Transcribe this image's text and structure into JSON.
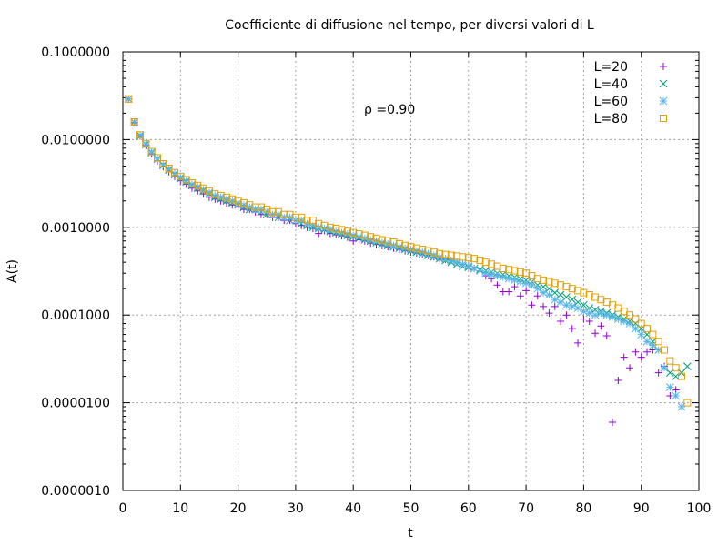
{
  "chart_data": {
    "type": "scatter",
    "title": "Coefficiente di diffusione nel tempo, per diversi valori di L",
    "xlabel": "t",
    "ylabel": "A(t)",
    "xlim": [
      0,
      100
    ],
    "ylim": [
      1e-06,
      0.1
    ],
    "yscale": "log",
    "grid": true,
    "legend_position": "top-right",
    "annotation": "ρ =0.90",
    "x_ticks": [
      "0",
      "10",
      "20",
      "30",
      "40",
      "50",
      "60",
      "70",
      "80",
      "90",
      "100"
    ],
    "y_ticks": [
      "0.0000010",
      "0.0000100",
      "0.0001000",
      "0.0010000",
      "0.0100000",
      "0.1000000"
    ],
    "series": [
      {
        "name": "L=20",
        "marker": "plus",
        "color": "#9400d3",
        "x": [
          1,
          2,
          3,
          4,
          5,
          6,
          7,
          8,
          9,
          10,
          11,
          12,
          13,
          14,
          15,
          16,
          17,
          18,
          19,
          20,
          21,
          22,
          23,
          24,
          25,
          26,
          27,
          28,
          29,
          30,
          31,
          32,
          33,
          34,
          35,
          36,
          37,
          38,
          39,
          40,
          41,
          42,
          43,
          44,
          45,
          46,
          47,
          48,
          49,
          50,
          51,
          52,
          53,
          54,
          55,
          56,
          57,
          58,
          59,
          60,
          61,
          62,
          63,
          64,
          65,
          66,
          67,
          68,
          69,
          70,
          71,
          72,
          73,
          74,
          75,
          76,
          77,
          78,
          79,
          80,
          81,
          82,
          83,
          84,
          85,
          86,
          87,
          88,
          89,
          90,
          91,
          92,
          93,
          94,
          95,
          96
        ],
        "y": [
          0.029,
          0.0155,
          0.011,
          0.0086,
          0.0069,
          0.0057,
          0.0049,
          0.0043,
          0.0038,
          0.0034,
          0.0031,
          0.0028,
          0.0026,
          0.0024,
          0.0022,
          0.0021,
          0.002,
          0.0019,
          0.0018,
          0.0017,
          0.0016,
          0.0016,
          0.0015,
          0.0014,
          0.0014,
          0.0013,
          0.0013,
          0.0012,
          0.0012,
          0.0011,
          0.00105,
          0.001,
          0.00097,
          0.00085,
          0.00092,
          0.00085,
          0.00082,
          0.0008,
          0.00077,
          0.0007,
          0.00072,
          0.0007,
          0.00066,
          0.00064,
          0.00062,
          0.0006,
          0.00058,
          0.00056,
          0.00054,
          0.00052,
          0.00051,
          0.0005,
          0.00048,
          0.00046,
          0.00044,
          0.00043,
          0.00042,
          0.0004,
          0.00038,
          0.00036,
          0.00034,
          0.00032,
          0.00028,
          0.00026,
          0.00022,
          0.000185,
          0.000185,
          0.00021,
          0.000165,
          0.00019,
          0.00013,
          0.000165,
          0.000125,
          0.000105,
          0.000125,
          8.5e-05,
          0.0001,
          7e-05,
          4.8e-05,
          9e-05,
          8.5e-05,
          6.2e-05,
          7.5e-05,
          5.8e-05,
          6e-06,
          1.8e-05,
          3.3e-05,
          2.5e-05,
          3.8e-05,
          3.3e-05,
          3.8e-05,
          4e-05,
          2.2e-05,
          2.6e-05,
          1.2e-05,
          1.4e-05
        ]
      },
      {
        "name": "L=40",
        "marker": "cross",
        "color": "#009e73",
        "x": [
          1,
          2,
          3,
          4,
          5,
          6,
          7,
          8,
          9,
          10,
          11,
          12,
          13,
          14,
          15,
          16,
          17,
          18,
          19,
          20,
          21,
          22,
          23,
          24,
          25,
          26,
          27,
          28,
          29,
          30,
          31,
          32,
          33,
          34,
          35,
          36,
          37,
          38,
          39,
          40,
          41,
          42,
          43,
          44,
          45,
          46,
          47,
          48,
          49,
          50,
          51,
          52,
          53,
          54,
          55,
          56,
          57,
          58,
          59,
          60,
          61,
          62,
          63,
          64,
          65,
          66,
          67,
          68,
          69,
          70,
          71,
          72,
          73,
          74,
          75,
          76,
          77,
          78,
          79,
          80,
          81,
          82,
          83,
          84,
          85,
          86,
          87,
          88,
          89,
          90,
          91,
          92,
          93,
          94,
          95,
          96,
          97,
          98
        ],
        "y": [
          0.029,
          0.0157,
          0.011,
          0.0088,
          0.0071,
          0.006,
          0.0051,
          0.0045,
          0.004,
          0.0036,
          0.0033,
          0.003,
          0.0028,
          0.0026,
          0.0024,
          0.0022,
          0.0021,
          0.002,
          0.0019,
          0.0018,
          0.0017,
          0.0016,
          0.0016,
          0.0015,
          0.0014,
          0.0014,
          0.0013,
          0.0013,
          0.0012,
          0.0012,
          0.0011,
          0.00105,
          0.001,
          0.00097,
          0.00094,
          0.0009,
          0.00087,
          0.00084,
          0.00081,
          0.00078,
          0.00075,
          0.00072,
          0.0007,
          0.00067,
          0.00065,
          0.00062,
          0.0006,
          0.00058,
          0.00056,
          0.00054,
          0.00052,
          0.0005,
          0.00048,
          0.00046,
          0.00044,
          0.00042,
          0.0004,
          0.00038,
          0.00036,
          0.00035,
          0.00034,
          0.00033,
          0.00032,
          0.00031,
          0.0003,
          0.00029,
          0.00028,
          0.00027,
          0.00026,
          0.00025,
          0.00024,
          0.00022,
          0.00021,
          0.0002,
          0.00018,
          0.00017,
          0.00016,
          0.00015,
          0.00014,
          0.00013,
          0.00012,
          0.000115,
          0.00011,
          0.000105,
          0.0001,
          9.5e-05,
          9e-05,
          8.5e-05,
          8e-05,
          7e-05,
          6e-05,
          5e-05,
          4e-05,
          2.5e-05,
          2.2e-05,
          2e-05,
          2.2e-05,
          2.6e-05
        ]
      },
      {
        "name": "L=60",
        "marker": "star",
        "color": "#56b4e9",
        "x": [
          1,
          2,
          3,
          4,
          5,
          6,
          7,
          8,
          9,
          10,
          11,
          12,
          13,
          14,
          15,
          16,
          17,
          18,
          19,
          20,
          21,
          22,
          23,
          24,
          25,
          26,
          27,
          28,
          29,
          30,
          31,
          32,
          33,
          34,
          35,
          36,
          37,
          38,
          39,
          40,
          41,
          42,
          43,
          44,
          45,
          46,
          47,
          48,
          49,
          50,
          51,
          52,
          53,
          54,
          55,
          56,
          57,
          58,
          59,
          60,
          61,
          62,
          63,
          64,
          65,
          66,
          67,
          68,
          69,
          70,
          71,
          72,
          73,
          74,
          75,
          76,
          77,
          78,
          79,
          80,
          81,
          82,
          83,
          84,
          85,
          86,
          87,
          88,
          89,
          90,
          91,
          92,
          93,
          94,
          95,
          96,
          97
        ],
        "y": [
          0.029,
          0.0158,
          0.0112,
          0.0089,
          0.0072,
          0.0061,
          0.0052,
          0.0046,
          0.0041,
          0.0037,
          0.0034,
          0.0031,
          0.0029,
          0.0027,
          0.0025,
          0.0023,
          0.0022,
          0.0021,
          0.002,
          0.0019,
          0.0018,
          0.0017,
          0.0016,
          0.0016,
          0.0015,
          0.0014,
          0.0014,
          0.0013,
          0.0013,
          0.0012,
          0.0012,
          0.0011,
          0.00105,
          0.001,
          0.00097,
          0.00094,
          0.0009,
          0.00087,
          0.00084,
          0.00081,
          0.00078,
          0.00075,
          0.00072,
          0.0007,
          0.00067,
          0.00065,
          0.00062,
          0.0006,
          0.00058,
          0.00056,
          0.00054,
          0.00052,
          0.0005,
          0.00048,
          0.00046,
          0.00044,
          0.00042,
          0.0004,
          0.00038,
          0.00036,
          0.00034,
          0.00032,
          0.0003,
          0.00029,
          0.00028,
          0.00027,
          0.00026,
          0.00025,
          0.00024,
          0.00023,
          0.00022,
          0.0002,
          0.00018,
          0.00017,
          0.00015,
          0.00014,
          0.00013,
          0.000125,
          0.00012,
          0.00011,
          0.000105,
          0.0001,
          0.000105,
          0.0001,
          9.5e-05,
          9e-05,
          8.5e-05,
          8e-05,
          7e-05,
          6e-05,
          5e-05,
          4.5e-05,
          4e-05,
          2.5e-05,
          1.5e-05,
          1.2e-05,
          9e-06
        ]
      },
      {
        "name": "L=80",
        "marker": "square",
        "color": "#e69f00",
        "x": [
          1,
          2,
          3,
          4,
          5,
          6,
          7,
          8,
          9,
          10,
          11,
          12,
          13,
          14,
          15,
          16,
          17,
          18,
          19,
          20,
          21,
          22,
          23,
          24,
          25,
          26,
          27,
          28,
          29,
          30,
          31,
          32,
          33,
          34,
          35,
          36,
          37,
          38,
          39,
          40,
          41,
          42,
          43,
          44,
          45,
          46,
          47,
          48,
          49,
          50,
          51,
          52,
          53,
          54,
          55,
          56,
          57,
          58,
          59,
          60,
          61,
          62,
          63,
          64,
          65,
          66,
          67,
          68,
          69,
          70,
          71,
          72,
          73,
          74,
          75,
          76,
          77,
          78,
          79,
          80,
          81,
          82,
          83,
          84,
          85,
          86,
          87,
          88,
          89,
          90,
          91,
          92,
          93,
          94,
          95,
          96,
          97,
          98
        ],
        "y": [
          0.029,
          0.0159,
          0.0113,
          0.009,
          0.0073,
          0.0062,
          0.0053,
          0.0047,
          0.0042,
          0.0038,
          0.0035,
          0.0032,
          0.003,
          0.0028,
          0.0026,
          0.0024,
          0.0023,
          0.0022,
          0.0021,
          0.002,
          0.0019,
          0.0018,
          0.0017,
          0.0017,
          0.0016,
          0.0015,
          0.0015,
          0.0014,
          0.0014,
          0.0013,
          0.0013,
          0.0012,
          0.0012,
          0.0011,
          0.00105,
          0.001,
          0.00097,
          0.00094,
          0.0009,
          0.00087,
          0.00084,
          0.00081,
          0.00078,
          0.00075,
          0.00072,
          0.0007,
          0.00068,
          0.00065,
          0.00062,
          0.0006,
          0.00058,
          0.00056,
          0.00054,
          0.00052,
          0.0005,
          0.00049,
          0.00048,
          0.00047,
          0.00046,
          0.00045,
          0.00044,
          0.00042,
          0.0004,
          0.00038,
          0.00036,
          0.00034,
          0.00033,
          0.00032,
          0.00031,
          0.0003,
          0.00028,
          0.00026,
          0.00025,
          0.00024,
          0.00023,
          0.00022,
          0.00021,
          0.0002,
          0.00019,
          0.00018,
          0.00017,
          0.00016,
          0.00015,
          0.00014,
          0.00013,
          0.00012,
          0.00011,
          0.0001,
          9e-05,
          8e-05,
          7e-05,
          6e-05,
          5e-05,
          4e-05,
          3e-05,
          2.5e-05,
          2e-05,
          1e-05
        ]
      }
    ]
  }
}
